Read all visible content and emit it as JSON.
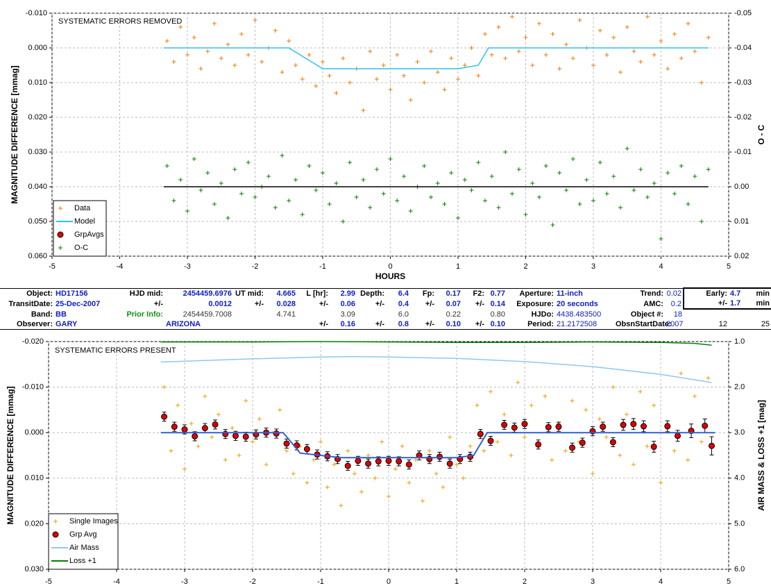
{
  "chart_data": [
    {
      "type": "scatter",
      "annotation": "SYSTEMATIC ERRORS REMOVED",
      "x_label": "HOURS",
      "y_label": "MAGNITUDE DIFFERENCE [mmag]",
      "y2_label": "O - C",
      "xlim": [
        -5,
        5
      ],
      "xticks": [
        -5,
        -4,
        -3,
        -2,
        -1,
        0,
        1,
        2,
        3,
        4,
        5
      ],
      "ylim": [
        -0.01,
        0.06
      ],
      "y_inverted": true,
      "yticks": [
        {
          "value": -0.01,
          "label": "-0.010"
        },
        {
          "value": 0,
          "label": "0.000"
        },
        {
          "value": 0.01,
          "label": "0.010"
        },
        {
          "value": 0.02,
          "label": "0.020"
        },
        {
          "value": 0.03,
          "label": "0.030"
        },
        {
          "value": 0.04,
          "label": "0.040"
        },
        {
          "value": 0.05,
          "label": "0.050"
        },
        {
          "value": 0.06,
          "label": "0.060"
        }
      ],
      "y2lim": [
        -0.05,
        0.02
      ],
      "y2ticks": [
        -0.05,
        -0.04,
        -0.03,
        -0.02,
        -0.01,
        {
          "value": 0,
          "label": "0.00"
        },
        0.01,
        0.02
      ],
      "grid": true,
      "legend": "lower left",
      "series": [
        {
          "name": "Data",
          "color": "#f07800",
          "marker": "plus",
          "x": [
            -3.3,
            -3.2,
            -3.1,
            -3.0,
            -2.9,
            -2.8,
            -2.7,
            -2.6,
            -2.5,
            -2.4,
            -2.3,
            -2.2,
            -2.1,
            -2.0,
            -1.9,
            -1.8,
            -1.7,
            -1.6,
            -1.5,
            -1.4,
            -1.3,
            -1.2,
            -1.1,
            -1.0,
            -0.9,
            -0.8,
            -0.7,
            -0.6,
            -0.5,
            -0.4,
            -0.3,
            -0.2,
            -0.1,
            0.0,
            0.1,
            0.2,
            0.3,
            0.4,
            0.5,
            0.6,
            0.7,
            0.8,
            0.9,
            1.0,
            1.1,
            1.2,
            1.3,
            1.4,
            1.5,
            1.6,
            1.7,
            1.8,
            1.9,
            2.0,
            2.1,
            2.2,
            2.3,
            2.4,
            2.5,
            2.6,
            2.7,
            2.8,
            2.9,
            3.0,
            3.1,
            3.2,
            3.3,
            3.4,
            3.5,
            3.6,
            3.7,
            3.8,
            3.9,
            4.0,
            4.1,
            4.2,
            4.3,
            4.4,
            4.5,
            4.6,
            4.7
          ],
          "values": [
            -0.002,
            0.004,
            -0.006,
            0.002,
            -0.003,
            0.006,
            0.001,
            -0.007,
            0.003,
            -0.001,
            0.005,
            -0.004,
            0.002,
            -0.008,
            0.004,
            0.0,
            -0.005,
            0.007,
            -0.002,
            0.005,
            0.009,
            0.002,
            0.011,
            0.004,
            0.008,
            0.013,
            0.003,
            0.01,
            0.006,
            0.018,
            0.001,
            0.009,
            0.005,
            0.012,
            0.002,
            0.008,
            0.015,
            0.004,
            0.01,
            0.001,
            0.007,
            0.012,
            0.003,
            0.009,
            0.005,
            0.0,
            0.008,
            -0.004,
            0.002,
            -0.006,
            0.003,
            -0.009,
            0.001,
            -0.003,
            0.005,
            -0.007,
            0.002,
            -0.004,
            0.006,
            -0.001,
            0.003,
            -0.008,
            0.0,
            0.005,
            -0.005,
            0.002,
            -0.003,
            0.007,
            -0.006,
            0.001,
            0.004,
            -0.009,
            0.002,
            -0.002,
            0.006,
            -0.004,
            0.003,
            -0.007,
            0.001,
            0.01,
            -0.003
          ]
        },
        {
          "name": "Model",
          "color": "#30c0e8",
          "marker": "line",
          "x": [
            -3.35,
            -1.5,
            -1.0,
            1.0,
            1.3,
            1.45,
            4.7
          ],
          "values": [
            0,
            0,
            0.006,
            0.006,
            0.005,
            0,
            0
          ]
        },
        {
          "name": "GrpAvgs",
          "color": "#e00000",
          "marker": "circle",
          "x": [],
          "values": []
        },
        {
          "name": "O-C",
          "color": "#008000",
          "marker": "plus",
          "axis": "y2",
          "x": [
            -3.3,
            -3.2,
            -3.1,
            -3.0,
            -2.9,
            -2.8,
            -2.7,
            -2.6,
            -2.5,
            -2.4,
            -2.3,
            -2.2,
            -2.1,
            -2.0,
            -1.9,
            -1.8,
            -1.7,
            -1.6,
            -1.5,
            -1.4,
            -1.3,
            -1.2,
            -1.1,
            -1.0,
            -0.9,
            -0.8,
            -0.7,
            -0.6,
            -0.5,
            -0.4,
            -0.3,
            -0.2,
            -0.1,
            0.0,
            0.1,
            0.2,
            0.3,
            0.4,
            0.5,
            0.6,
            0.7,
            0.8,
            0.9,
            1.0,
            1.1,
            1.2,
            1.3,
            1.4,
            1.5,
            1.6,
            1.7,
            1.8,
            1.9,
            2.0,
            2.1,
            2.2,
            2.3,
            2.4,
            2.5,
            2.6,
            2.7,
            2.8,
            2.9,
            3.0,
            3.1,
            3.2,
            3.3,
            3.4,
            3.5,
            3.6,
            3.7,
            3.8,
            3.9,
            4.0,
            4.1,
            4.2,
            4.3,
            4.4,
            4.5,
            4.6,
            4.7
          ],
          "values": [
            -0.006,
            0.004,
            -0.002,
            0.007,
            -0.008,
            0.001,
            -0.004,
            0.005,
            -0.001,
            0.009,
            -0.005,
            0.002,
            -0.007,
            0.003,
            0.0,
            -0.003,
            0.006,
            -0.009,
            0.004,
            -0.002,
            0.008,
            -0.006,
            0.001,
            -0.004,
            0.005,
            -0.001,
            0.01,
            -0.007,
            0.003,
            -0.002,
            0.006,
            -0.005,
            0.002,
            -0.008,
            0.004,
            -0.003,
            0.007,
            0.0,
            -0.006,
            0.003,
            -0.001,
            0.005,
            -0.004,
            0.009,
            -0.002,
            0.001,
            -0.007,
            0.004,
            -0.003,
            0.006,
            -0.01,
            0.002,
            -0.005,
            0.008,
            -0.001,
            0.003,
            -0.006,
            0.011,
            -0.004,
            0.001,
            -0.008,
            0.005,
            -0.002,
            0.004,
            -0.007,
            0.002,
            -0.003,
            0.006,
            -0.011,
            0.001,
            -0.005,
            0.003,
            -0.001,
            0.015,
            -0.004,
            0.002,
            -0.006,
            0.005,
            -0.003,
            0.01,
            -0.005
          ]
        },
        {
          "color": "#000000",
          "marker": "line",
          "axis": "y2",
          "x": [
            -3.35,
            4.7
          ],
          "values": [
            0,
            0
          ]
        }
      ]
    },
    {
      "type": "scatter",
      "annotation": "SYSTEMATIC ERRORS PRESENT",
      "y_label": "MAGNITUDE DIFFERENCE [mmag]",
      "y2_label": "AIR MASS & LOSS +1 [mag]",
      "xlim": [
        -5,
        5
      ],
      "xticks": [
        -5,
        -4,
        -3,
        -2,
        -1,
        0,
        1,
        2,
        3,
        4,
        5
      ],
      "ylim": [
        -0.02,
        0.03
      ],
      "y_inverted": true,
      "yticks": [
        {
          "value": -0.02,
          "label": "-0.020"
        },
        {
          "value": -0.01,
          "label": "-0.010"
        },
        {
          "value": 0,
          "label": "0.000"
        },
        {
          "value": 0.01,
          "label": "0.010"
        },
        {
          "value": 0.02,
          "label": "0.020"
        },
        {
          "value": 0.03,
          "label": "0.030"
        }
      ],
      "y2lim": [
        1,
        6
      ],
      "y2ticks": [
        {
          "value": 6,
          "label": "6.0"
        },
        {
          "value": 5,
          "label": "5.0"
        },
        {
          "value": 4,
          "label": "4.0"
        },
        {
          "value": 3,
          "label": "3.0"
        },
        {
          "value": 2,
          "label": "2.0"
        },
        {
          "value": 1,
          "label": "1.0"
        }
      ],
      "grid": true,
      "legend": "lower left",
      "series": [
        {
          "name": "Single Images",
          "color": "#e8a000",
          "marker": "plus",
          "x": [
            -3.3,
            -3.2,
            -3.1,
            -3.0,
            -2.9,
            -2.8,
            -2.7,
            -2.6,
            -2.5,
            -2.4,
            -2.3,
            -2.2,
            -2.1,
            -2.0,
            -1.9,
            -1.8,
            -1.7,
            -1.6,
            -1.5,
            -1.4,
            -1.3,
            -1.2,
            -1.1,
            -1.0,
            -0.9,
            -0.8,
            -0.7,
            -0.6,
            -0.5,
            -0.4,
            -0.3,
            -0.2,
            -0.1,
            0.0,
            0.1,
            0.2,
            0.3,
            0.4,
            0.5,
            0.6,
            0.7,
            0.8,
            0.9,
            1.0,
            1.1,
            1.2,
            1.3,
            1.4,
            1.5,
            1.6,
            1.7,
            1.8,
            1.9,
            2.0,
            2.1,
            2.2,
            2.3,
            2.4,
            2.5,
            2.6,
            2.7,
            2.8,
            2.9,
            3.0,
            3.1,
            3.2,
            3.3,
            3.4,
            3.5,
            3.6,
            3.7,
            3.8,
            3.9,
            4.0,
            4.1,
            4.2,
            4.3,
            4.4,
            4.5,
            4.6,
            4.7
          ],
          "values": [
            -0.01,
            0.004,
            -0.006,
            0.008,
            -0.002,
            0.003,
            -0.008,
            0.001,
            -0.004,
            0.006,
            -0.001,
            0.005,
            -0.007,
            0.002,
            -0.003,
            0.007,
            0.0,
            -0.005,
            0.004,
            0.009,
            0.003,
            0.011,
            0.006,
            0.002,
            0.012,
            0.007,
            0.016,
            0.004,
            0.009,
            0.013,
            0.005,
            0.01,
            0.002,
            0.014,
            0.008,
            0.003,
            0.011,
            0.006,
            0.015,
            0.004,
            0.009,
            0.012,
            0.001,
            0.007,
            0.01,
            0.003,
            -0.006,
            0.004,
            -0.009,
            0.002,
            -0.004,
            0.005,
            -0.011,
            0.001,
            -0.006,
            0.003,
            -0.008,
            0.006,
            -0.002,
            0.004,
            -0.007,
            0.002,
            -0.005,
            0.009,
            -0.003,
            0.001,
            -0.01,
            0.005,
            -0.004,
            0.007,
            -0.009,
            0.003,
            -0.006,
            0.011,
            -0.002,
            0.004,
            -0.013,
            0.006,
            -0.008,
            0.002,
            -0.012
          ]
        },
        {
          "name": "Grp Avg",
          "color": "#e00000",
          "marker": "circle",
          "x": [
            -3.3,
            -3.15,
            -3.0,
            -2.85,
            -2.7,
            -2.55,
            -2.4,
            -2.25,
            -2.1,
            -1.95,
            -1.8,
            -1.65,
            -1.5,
            -1.35,
            -1.2,
            -1.05,
            -0.9,
            -0.75,
            -0.6,
            -0.45,
            -0.3,
            -0.15,
            0.0,
            0.15,
            0.3,
            0.45,
            0.6,
            0.75,
            0.9,
            1.05,
            1.2,
            1.35,
            1.5,
            1.7,
            1.85,
            2.0,
            2.2,
            2.35,
            2.5,
            2.7,
            2.85,
            3.0,
            3.15,
            3.3,
            3.45,
            3.6,
            3.75,
            3.9,
            4.1,
            4.25,
            4.45,
            4.65,
            4.75
          ],
          "values": [
            -0.0035,
            -0.0013,
            -0.0007,
            0.0008,
            -0.001,
            -0.0018,
            0.0003,
            0.0007,
            0.0009,
            0.0004,
            0.0,
            0.0002,
            0.0024,
            0.0028,
            0.0036,
            0.0048,
            0.0052,
            0.0058,
            0.0073,
            0.0062,
            0.0068,
            0.0063,
            0.0062,
            0.0063,
            0.007,
            0.005,
            0.0058,
            0.0053,
            0.0068,
            0.0058,
            0.0053,
            0.0003,
            0.0018,
            -0.0017,
            -0.0011,
            -0.0019,
            0.0026,
            -0.0012,
            -0.0013,
            0.0033,
            0.0022,
            -0.0003,
            -0.0013,
            0.0021,
            -0.0017,
            -0.0019,
            -0.0014,
            0.0031,
            -0.0014,
            0.0007,
            -0.0004,
            -0.0015,
            0.0029
          ],
          "errors": [
            0.001,
            0.001,
            0.001,
            0.001,
            0.001,
            0.001,
            0.001,
            0.001,
            0.001,
            0.001,
            0.001,
            0.001,
            0.001,
            0.001,
            0.001,
            0.001,
            0.001,
            0.001,
            0.001,
            0.001,
            0.001,
            0.001,
            0.001,
            0.001,
            0.001,
            0.001,
            0.001,
            0.001,
            0.001,
            0.001,
            0.001,
            0.001,
            0.001,
            0.001,
            0.001,
            0.001,
            0.001,
            0.001,
            0.001,
            0.001,
            0.001,
            0.001,
            0.001,
            0.001,
            0.0012,
            0.0012,
            0.0012,
            0.0012,
            0.0012,
            0.0012,
            0.0015,
            0.0015,
            0.002
          ]
        },
        {
          "name": "Air Mass",
          "color": "#8cc8f0",
          "marker": "line",
          "axis": "y2",
          "x": [
            -3.35,
            -2,
            -1,
            -0.5,
            0,
            1,
            2,
            3,
            4,
            4.75
          ],
          "values": [
            1.45,
            1.38,
            1.34,
            1.33,
            1.34,
            1.37,
            1.44,
            1.55,
            1.72,
            1.9
          ]
        },
        {
          "name": "Loss +1",
          "color": "#008000",
          "marker": "line",
          "axis": "y2",
          "x": [
            -3.35,
            -2,
            -1,
            0,
            1,
            2,
            3,
            4,
            4.5,
            4.75
          ],
          "values": [
            1.01,
            1.01,
            1.0,
            1.01,
            1.02,
            1.02,
            1.01,
            1.02,
            1.04,
            1.08
          ]
        },
        {
          "color": "#3060d0",
          "marker": "line",
          "x": [
            -3.35,
            -1.55,
            -1.3,
            -0.7,
            1.0,
            1.25,
            1.45,
            4.8
          ],
          "values": [
            0,
            0,
            0.0045,
            0.0055,
            0.0055,
            0.005,
            0,
            0
          ]
        }
      ]
    }
  ],
  "table": {
    "rows": [
      [
        "Object:",
        "HD17156",
        "HJD mid:",
        "2454459.6976",
        "UT mid:",
        "4.665",
        "L [hr]:",
        "2.99",
        "Depth:",
        "6.4",
        "Fp:",
        "0.17",
        "F2:",
        "0.77",
        "Aperture:",
        "11-inch",
        "Trend:",
        "0.02",
        "Early:",
        "4.7",
        "min"
      ],
      [
        "TransitDate:",
        "25-Dec-2007",
        "+/-",
        "0.0012",
        "+/-",
        "0.028",
        "+/-",
        "0.06",
        "+/-",
        "0.4",
        "+/-",
        "0.07",
        "+/-",
        "0.14",
        "Exposure:",
        "20 seconds",
        "AMC:",
        "0.2",
        "+/-",
        "1.7",
        "min"
      ],
      [
        "Band:",
        "BB",
        "Prior Info:",
        "2454459.7008",
        null,
        "4.741",
        null,
        "3.09",
        null,
        "6.0",
        null,
        "0.22",
        null,
        "0.80",
        "HJDo:",
        "4438.483500",
        "Object #:",
        "18",
        null,
        null,
        null
      ],
      [
        "Observer:",
        "GARY",
        null,
        "ARIZONA",
        null,
        null,
        "+/-",
        "0.16",
        "+/-",
        "0.8",
        "+/-",
        "0.10",
        "+/-",
        "0.10",
        "Period:",
        "21.2172508",
        "ObsnStartDate:",
        "2007",
        "12",
        null,
        "25"
      ]
    ]
  }
}
